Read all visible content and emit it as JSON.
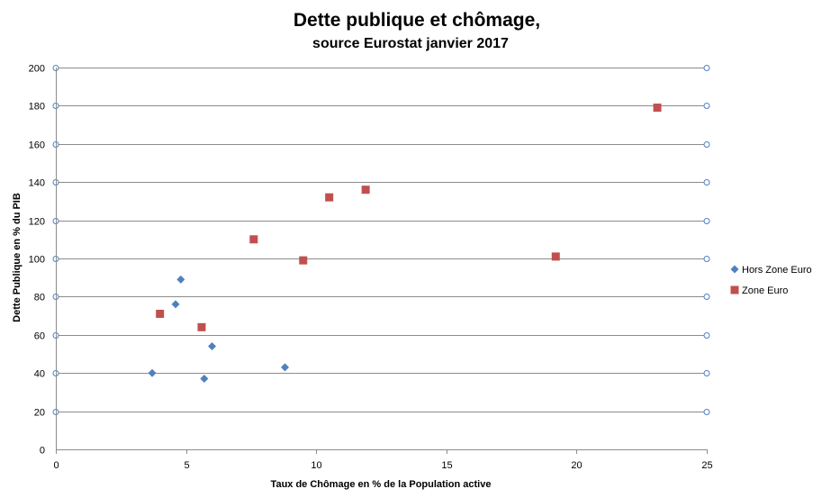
{
  "chart_data": {
    "type": "scatter",
    "title": "Dette publique et chômage,",
    "subtitle": "source Eurostat  janvier 2017",
    "xlabel": "Taux de Chômage en % de la Population active",
    "ylabel": "Dette Publique en % du PIB",
    "xlim": [
      0,
      25
    ],
    "ylim": [
      0,
      200
    ],
    "xticks": [
      0,
      5,
      10,
      15,
      20,
      25
    ],
    "yticks": [
      0,
      20,
      40,
      60,
      80,
      100,
      120,
      140,
      160,
      180,
      200
    ],
    "grid": true,
    "legend_position": "right",
    "series": [
      {
        "name": "Hors Zone Euro",
        "color": "#4f81bd",
        "marker": "diamond",
        "points": [
          {
            "x": 3.7,
            "y": 40
          },
          {
            "x": 4.6,
            "y": 76
          },
          {
            "x": 4.8,
            "y": 89
          },
          {
            "x": 5.7,
            "y": 37
          },
          {
            "x": 6.0,
            "y": 54
          },
          {
            "x": 8.8,
            "y": 43
          }
        ]
      },
      {
        "name": "Zone Euro",
        "color": "#c0504d",
        "marker": "square",
        "points": [
          {
            "x": 4.0,
            "y": 71
          },
          {
            "x": 5.6,
            "y": 64
          },
          {
            "x": 7.6,
            "y": 110
          },
          {
            "x": 9.5,
            "y": 99
          },
          {
            "x": 10.5,
            "y": 132
          },
          {
            "x": 11.9,
            "y": 136
          },
          {
            "x": 19.2,
            "y": 101
          },
          {
            "x": 23.1,
            "y": 179
          }
        ]
      }
    ]
  }
}
